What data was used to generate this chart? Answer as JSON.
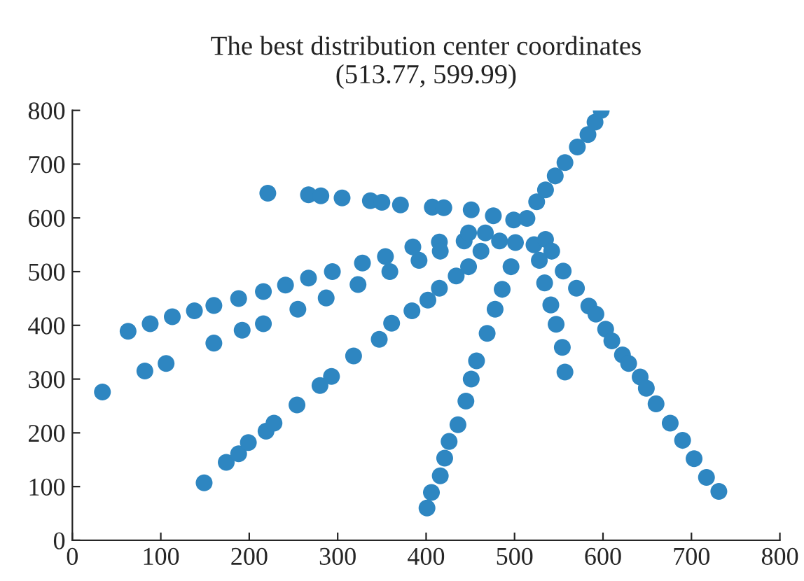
{
  "chart_data": {
    "type": "scatter",
    "title": "The best distribution center coordinates",
    "subtitle": "(513.77, 599.99)",
    "x": [
      221,
      267,
      281,
      305,
      337,
      350,
      371,
      407,
      420,
      451,
      476,
      499,
      514,
      525,
      535,
      546,
      557,
      571,
      583,
      591,
      598,
      392,
      415,
      416,
      402,
      415,
      434,
      448,
      462,
      443,
      448,
      467,
      483,
      501,
      496,
      486,
      478,
      469,
      457,
      451,
      445,
      436,
      426,
      421,
      416,
      406,
      401,
      522,
      535,
      542,
      528,
      555,
      534,
      570,
      541,
      547,
      554,
      557,
      584,
      592,
      603,
      610,
      622,
      629,
      642,
      649,
      660,
      676,
      690,
      703,
      717,
      731,
      34,
      82,
      106,
      160,
      192,
      216,
      255,
      287,
      323,
      359,
      63,
      88,
      113,
      138,
      160,
      188,
      216,
      241,
      267,
      294,
      328,
      354,
      385,
      149,
      174,
      188,
      199,
      219,
      228,
      254,
      280,
      293,
      318,
      347,
      361,
      384
    ],
    "series": [
      {
        "color": "#2e86c1",
        "values": [
          646,
          643,
          641,
          637,
          632,
          629,
          624,
          620,
          619,
          615,
          604,
          596,
          599,
          630,
          652,
          678,
          703,
          732,
          755,
          778,
          800,
          521,
          555,
          538,
          447,
          469,
          492,
          509,
          538,
          557,
          572,
          572,
          557,
          554,
          509,
          467,
          430,
          385,
          334,
          300,
          259,
          215,
          184,
          153,
          120,
          89,
          60,
          550,
          560,
          538,
          521,
          501,
          479,
          469,
          438,
          402,
          359,
          313,
          436,
          421,
          393,
          371,
          345,
          329,
          304,
          283,
          254,
          218,
          186,
          152,
          117,
          91,
          276,
          315,
          329,
          367,
          391,
          403,
          430,
          451,
          476,
          500,
          389,
          403,
          416,
          427,
          437,
          450,
          463,
          475,
          488,
          500,
          516,
          528,
          546,
          107,
          145,
          161,
          182,
          203,
          218,
          252,
          288,
          305,
          343,
          374,
          404,
          427
        ]
      }
    ],
    "xlim": [
      0,
      800
    ],
    "ylim": [
      0,
      800
    ],
    "xticks": [
      0,
      100,
      200,
      300,
      400,
      500,
      600,
      700,
      800
    ],
    "yticks": [
      0,
      100,
      200,
      300,
      400,
      500,
      600,
      700,
      800
    ],
    "marker": "circle",
    "grid": false,
    "legend": false
  }
}
